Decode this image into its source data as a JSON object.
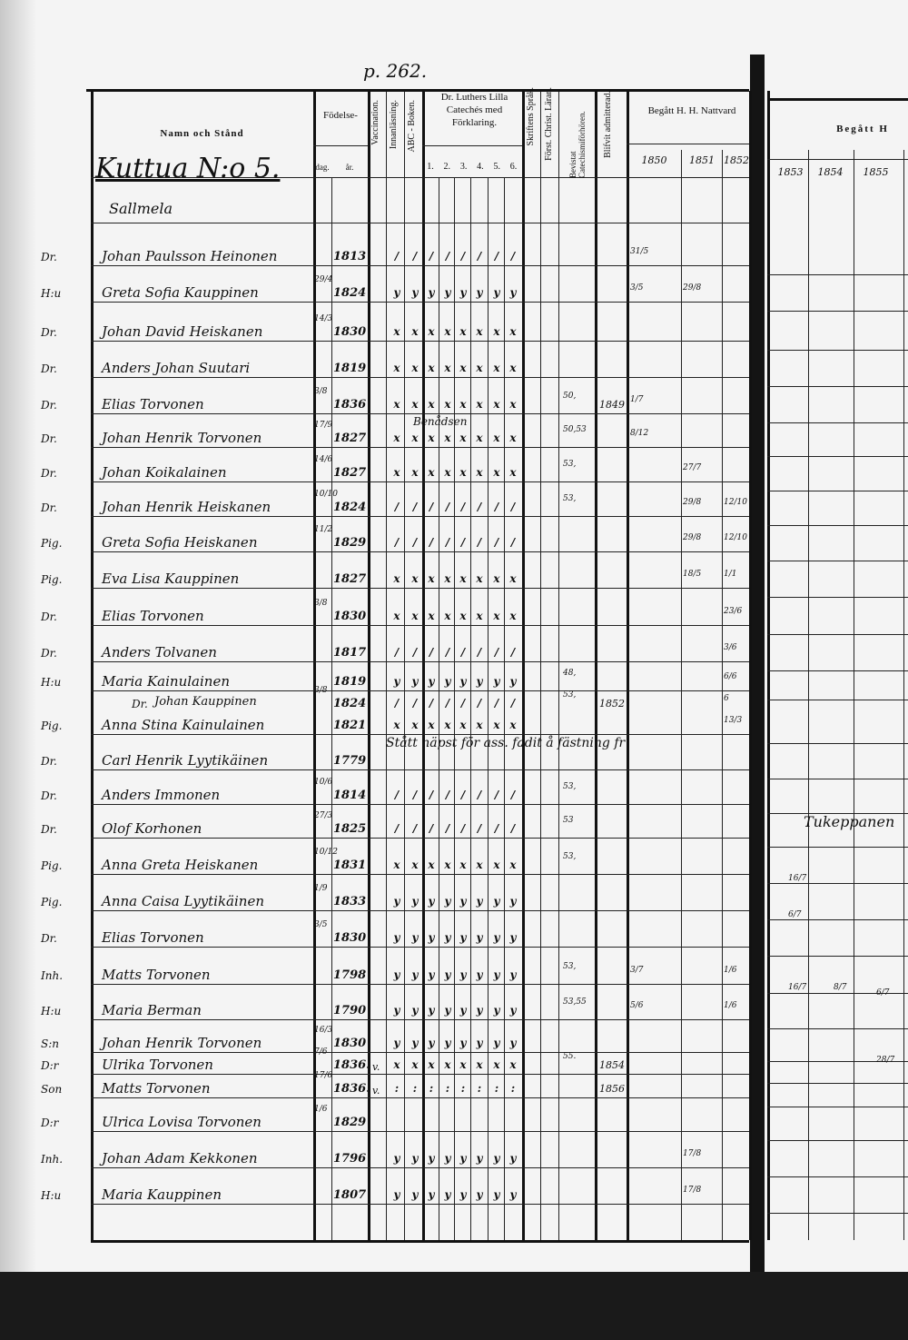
{
  "page_number": "p. 262.",
  "header": {
    "name_col": "Namn och Stånd",
    "birth": "Födelse-",
    "birth_day": "dag.",
    "birth_year": "år.",
    "vaccination": "Vaccination.",
    "innanlasning": "Innanläsning.",
    "abc": "ABC - Boken.",
    "catechism": "Dr. Luthers Lilla Catechés med Förklaring.",
    "catechism_parts": [
      "1.",
      "2.",
      "3.",
      "4.",
      "5.",
      "6."
    ],
    "skriften": "Skriftens Språk.",
    "forst": "Först. Christ. Läran.",
    "bevistat": "Bevistat Catechismiförhören.",
    "blifvit": "Blifvit admitterad.",
    "nattvard": "Begått H. H. Nattvard",
    "years_left": [
      "1850",
      "1851",
      "1852"
    ],
    "nattvard_right": "Begått H",
    "years_right": [
      "1853",
      "1854",
      "1855"
    ]
  },
  "household": {
    "farm": "Kuttua N:o 5.",
    "place": "Sallmela"
  },
  "rows": [
    {
      "title": "Dr.",
      "name": "Johan Paulsson Heinonen",
      "day": "",
      "year": "1813",
      "marks": "/",
      "bev": "",
      "adm": "",
      "n50": "31/5",
      "n51": "",
      "n52": ""
    },
    {
      "title": "H:u",
      "name": "Greta Sofia Kauppinen",
      "day": "29/4",
      "year": "1824",
      "marks": "y",
      "bev": "",
      "adm": "",
      "n50": "3/5",
      "n51": "29/8",
      "n52": ""
    },
    {
      "title": "Dr.",
      "name": "Johan David Heiskanen",
      "day": "14/3",
      "year": "1830",
      "marks": "x",
      "bev": "",
      "adm": "",
      "n50": "",
      "n51": "",
      "n52": ""
    },
    {
      "title": "Dr.",
      "name": "Anders Johan Suutari",
      "day": "",
      "year": "1819",
      "marks": "x",
      "bev": "",
      "adm": "",
      "n50": "",
      "n51": "",
      "n52": ""
    },
    {
      "title": "Dr.",
      "name": "Elias Torvonen",
      "day": "3/8",
      "year": "1836",
      "marks": "x",
      "bev": "50,",
      "adm": "1849",
      "n50": "1/7",
      "n51": "",
      "n52": ""
    },
    {
      "title": "Dr.",
      "name": "Johan Henrik Torvonen",
      "day": "17/9",
      "year": "1827",
      "marks": "x",
      "bev": "50,53",
      "adm": "",
      "n50": "8/12",
      "n51": "",
      "n52": "",
      "note": "Benådsen"
    },
    {
      "title": "Dr.",
      "name": "Johan Koikalainen",
      "day": "14/6",
      "year": "1827",
      "marks": "x",
      "bev": "53,",
      "adm": "",
      "n50": "",
      "n51": "27/7",
      "n52": ""
    },
    {
      "title": "Dr.",
      "name": "Johan Henrik Heiskanen",
      "day": "10/10",
      "year": "1824",
      "marks": "/",
      "bev": "53,",
      "adm": "",
      "n50": "",
      "n51": "29/8",
      "n52": "12/10"
    },
    {
      "title": "Pig.",
      "name": "Greta Sofia Heiskanen",
      "day": "11/2",
      "year": "1829",
      "marks": "/",
      "bev": "",
      "adm": "",
      "n50": "",
      "n51": "29/8",
      "n52": "12/10"
    },
    {
      "title": "Pig.",
      "name": "Eva Lisa Kauppinen",
      "day": "",
      "year": "1827",
      "marks": "x",
      "bev": "",
      "adm": "",
      "n50": "",
      "n51": "18/5",
      "n52": "1/1"
    },
    {
      "title": "Dr.",
      "name": "Elias Torvonen",
      "day": "3/8",
      "year": "1830",
      "marks": "x",
      "bev": "",
      "adm": "",
      "n50": "",
      "n51": "",
      "n52": "23/6"
    },
    {
      "title": "Dr.",
      "name": "Anders Tolvanen",
      "day": "",
      "year": "1817",
      "marks": "/",
      "bev": "",
      "adm": "",
      "n50": "",
      "n51": "",
      "n52": "3/6"
    },
    {
      "title": "H:u",
      "name": "Maria Kainulainen",
      "day": "",
      "year": "1819",
      "marks": "y",
      "bev": "48,",
      "adm": "",
      "n50": "",
      "n51": "",
      "n52": "6/6"
    },
    {
      "title": "Dr.",
      "name": "Johan Kauppinen",
      "day": "3/8",
      "year": "1824",
      "marks": "/",
      "bev": "53,",
      "adm": "1852",
      "n50": "",
      "n51": "",
      "n52": "6"
    },
    {
      "title": "Pig.",
      "name": "Anna Stina Kainulainen",
      "day": "",
      "year": "1821",
      "marks": "x",
      "bev": "",
      "adm": "",
      "n50": "",
      "n51": "",
      "n52": "13/3"
    },
    {
      "title": "Dr.",
      "name": "Carl Henrik Lyytikäinen",
      "day": "",
      "year": "1779",
      "marks": "",
      "bev": "",
      "adm": "",
      "n50": "",
      "n51": "",
      "n52": "",
      "note": "Stått näpst för ass. fadit å fästning fr"
    },
    {
      "title": "Dr.",
      "name": "Anders Immonen",
      "day": "10/6",
      "year": "1814",
      "marks": "/",
      "bev": "53,",
      "adm": "",
      "n50": "",
      "n51": "",
      "n52": ""
    },
    {
      "title": "Dr.",
      "name": "Olof Korhonen",
      "day": "27/3",
      "year": "1825",
      "marks": "/",
      "bev": "53",
      "adm": "",
      "n50": "",
      "n51": "",
      "n52": ""
    },
    {
      "title": "Pig.",
      "name": "Anna Greta Heiskanen",
      "day": "10/12",
      "year": "1831",
      "marks": "x",
      "bev": "53,",
      "adm": "",
      "n50": "",
      "n51": "",
      "n52": ""
    },
    {
      "title": "Pig.",
      "name": "Anna Caisa Lyytikäinen",
      "day": "1/9",
      "year": "1833",
      "marks": "y",
      "bev": "",
      "adm": "",
      "n50": "",
      "n51": "",
      "n52": ""
    },
    {
      "title": "Dr.",
      "name": "Elias Torvonen",
      "day": "3/5",
      "year": "1830",
      "marks": "y",
      "bev": "",
      "adm": "",
      "n50": "",
      "n51": "",
      "n52": ""
    },
    {
      "title": "Inh.",
      "name": "Matts Torvonen",
      "day": "",
      "year": "1798",
      "marks": "y",
      "bev": "53,",
      "adm": "",
      "n50": "3/7",
      "n51": "",
      "n52": "1/6"
    },
    {
      "title": "H:u",
      "name": "Maria Berman",
      "day": "",
      "year": "1790",
      "marks": "y",
      "bev": "53,55",
      "adm": "",
      "n50": "5/6",
      "n51": "",
      "n52": "1/6"
    },
    {
      "title": "S:n",
      "name": "Johan Henrik Torvonen",
      "day": "16/3",
      "year": "1830",
      "marks": "y",
      "bev": "",
      "adm": "",
      "n50": "",
      "n51": "",
      "n52": ""
    },
    {
      "title": "D:r",
      "name": "Ulrika Torvonen",
      "day": "7/6",
      "year": "1836.",
      "vacc": "v.",
      "marks": "x",
      "bev": "55.",
      "adm": "1854",
      "n50": "",
      "n51": "",
      "n52": ""
    },
    {
      "title": "Son",
      "name": "Matts Torvonen",
      "day": "17/6",
      "year": "1836.",
      "vacc": "v.",
      "marks": ":",
      "bev": "",
      "adm": "1856",
      "n50": "",
      "n51": "",
      "n52": ""
    },
    {
      "title": "D:r",
      "name": "Ulrica Lovisa Torvonen",
      "day": "1/6",
      "year": "1829",
      "marks": "",
      "bev": "",
      "adm": "",
      "n50": "",
      "n51": "",
      "n52": ""
    },
    {
      "title": "Inh.",
      "name": "Johan Adam Kekkonen",
      "day": "",
      "year": "1796",
      "marks": "y",
      "bev": "",
      "adm": "",
      "n50": "",
      "n51": "17/8",
      "n52": ""
    },
    {
      "title": "H:u",
      "name": "Maria Kauppinen",
      "day": "",
      "year": "1807",
      "marks": "y",
      "bev": "",
      "adm": "",
      "n50": "",
      "n51": "17/8",
      "n52": ""
    }
  ],
  "right_page": {
    "note": "Tukeppanen",
    "entries": [
      "16/7",
      "6/7",
      "16/7",
      "8/7",
      "6/7",
      "28/7"
    ]
  }
}
